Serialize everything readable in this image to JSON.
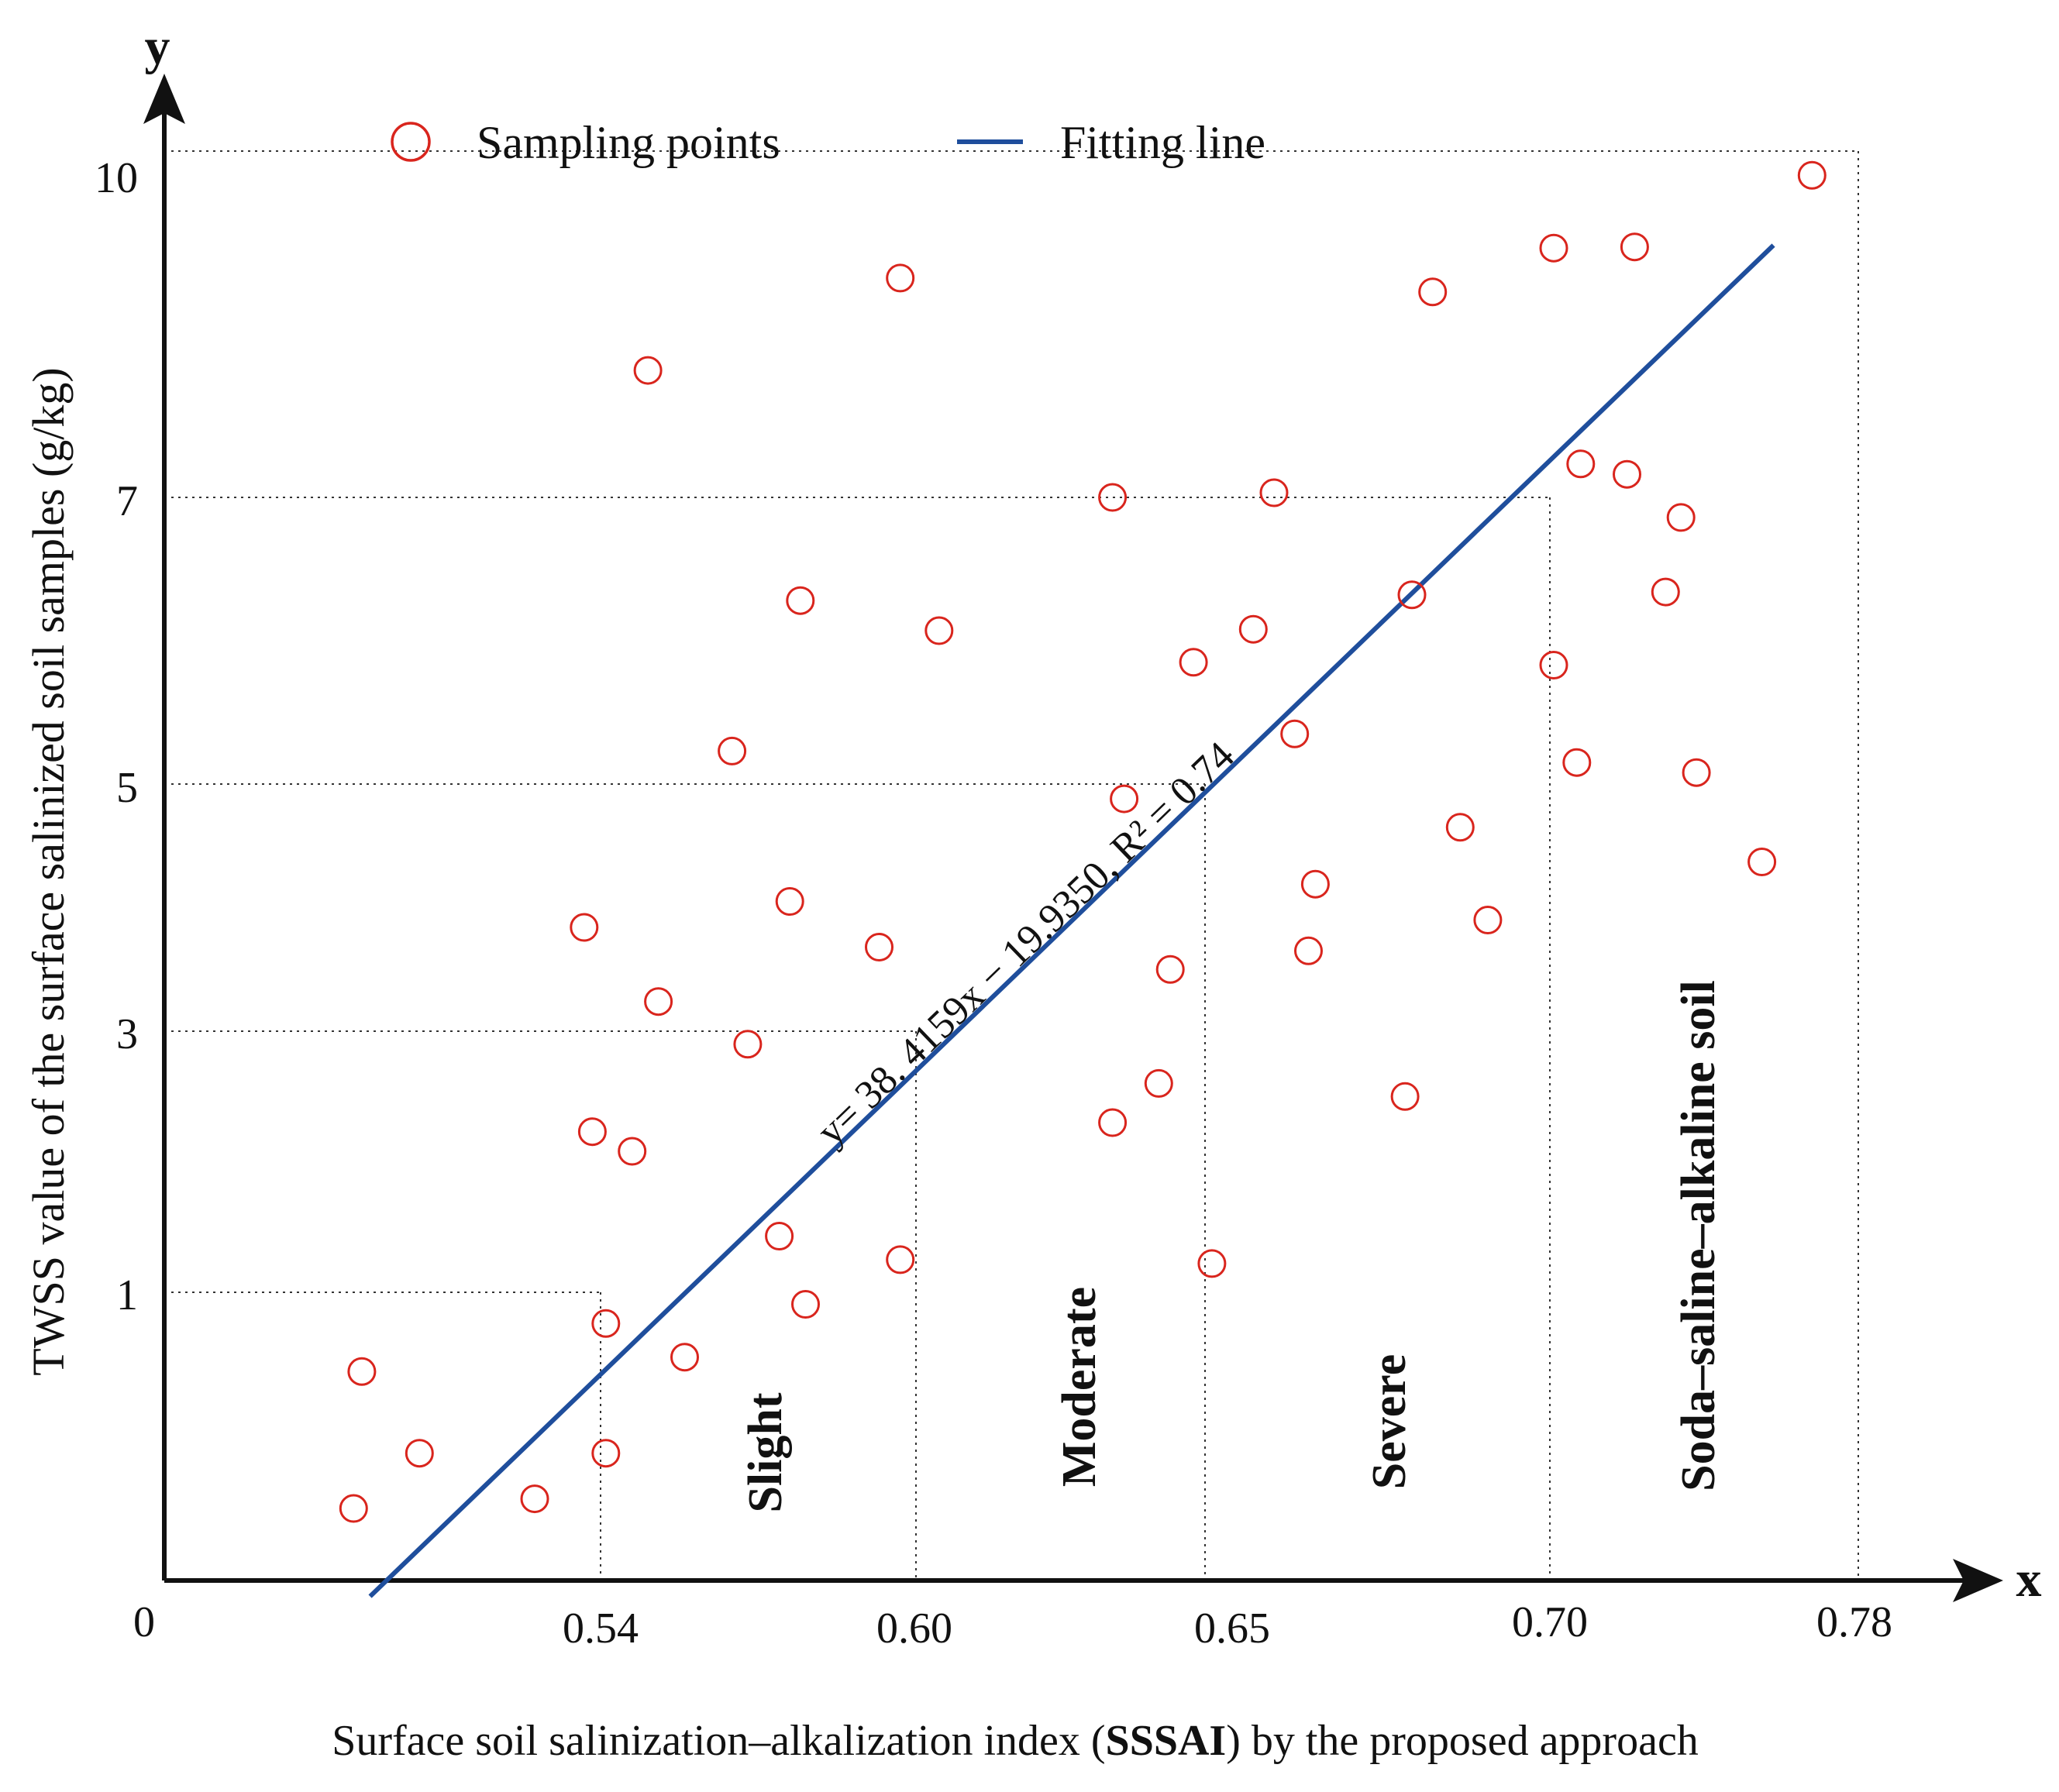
{
  "chart_data": {
    "type": "scatter",
    "title": "",
    "xlabel_parts": [
      {
        "text": "Surface soil salinization–alkalization index (",
        "bold": false
      },
      {
        "text": "SSSAI",
        "bold": true
      },
      {
        "text": ") by the proposed approach",
        "bold": false
      }
    ],
    "ylabel": "TWSS value of the surface salinized soil samples (g/kg)",
    "axis_letter_x": "x",
    "axis_letter_y": "y",
    "origin_label": "0",
    "x_ticks": [
      "0.54",
      "0.60",
      "0.65",
      "0.70",
      "0.78"
    ],
    "y_ticks": [
      "1",
      "3",
      "5",
      "7",
      "10"
    ],
    "legend_position": "top",
    "legend": {
      "points_label": "Sampling points",
      "line_label": "Fitting line"
    },
    "colors": {
      "points": "#d9251d",
      "line": "#1f4e9c",
      "axis": "#111111",
      "guides": "#333333"
    },
    "fit": {
      "equation": "y= 38. 4159x − 19.9350, R² = 0.74",
      "slope": 38.4159,
      "intercept": -19.935,
      "r2": 0.74,
      "x_range": [
        0.512,
        0.758
      ]
    },
    "regions": [
      "Slight",
      "Moderate",
      "Severe",
      "Soda–saline–alkaline soil"
    ],
    "series": [
      {
        "name": "Sampling points",
        "points": [
          [
            0.51,
            0.1
          ],
          [
            0.511,
            0.67
          ],
          [
            0.518,
            0.33
          ],
          [
            0.532,
            0.14
          ],
          [
            0.539,
            2.23
          ],
          [
            0.541,
            0.87
          ],
          [
            0.541,
            0.33
          ],
          [
            0.538,
            3.84
          ],
          [
            0.546,
            2.08
          ],
          [
            0.549,
            8.1
          ],
          [
            0.551,
            3.24
          ],
          [
            0.556,
            0.73
          ],
          [
            0.565,
            5.23
          ],
          [
            0.568,
            2.9
          ],
          [
            0.574,
            1.43
          ],
          [
            0.576,
            4.05
          ],
          [
            0.578,
            6.28
          ],
          [
            0.579,
            0.95
          ],
          [
            0.593,
            3.68
          ],
          [
            0.597,
            1.25
          ],
          [
            0.597,
            8.9
          ],
          [
            0.604,
            6.07
          ],
          [
            0.634,
            7.0
          ],
          [
            0.634,
            2.3
          ],
          [
            0.636,
            4.88
          ],
          [
            0.642,
            2.6
          ],
          [
            0.644,
            3.5
          ],
          [
            0.648,
            5.85
          ],
          [
            0.651,
            1.22
          ],
          [
            0.657,
            6.08
          ],
          [
            0.66,
            7.04
          ],
          [
            0.663,
            5.35
          ],
          [
            0.665,
            3.65
          ],
          [
            0.666,
            4.19
          ],
          [
            0.679,
            2.5
          ],
          [
            0.68,
            6.32
          ],
          [
            0.683,
            8.78
          ],
          [
            0.687,
            4.65
          ],
          [
            0.691,
            3.9
          ],
          [
            0.701,
            5.83
          ],
          [
            0.701,
            9.16
          ],
          [
            0.707,
            5.15
          ],
          [
            0.708,
            7.29
          ],
          [
            0.72,
            7.2
          ],
          [
            0.722,
            9.17
          ],
          [
            0.73,
            6.34
          ],
          [
            0.734,
            6.86
          ],
          [
            0.738,
            5.08
          ],
          [
            0.755,
            4.37
          ],
          [
            0.768,
            9.79
          ]
        ]
      }
    ]
  }
}
